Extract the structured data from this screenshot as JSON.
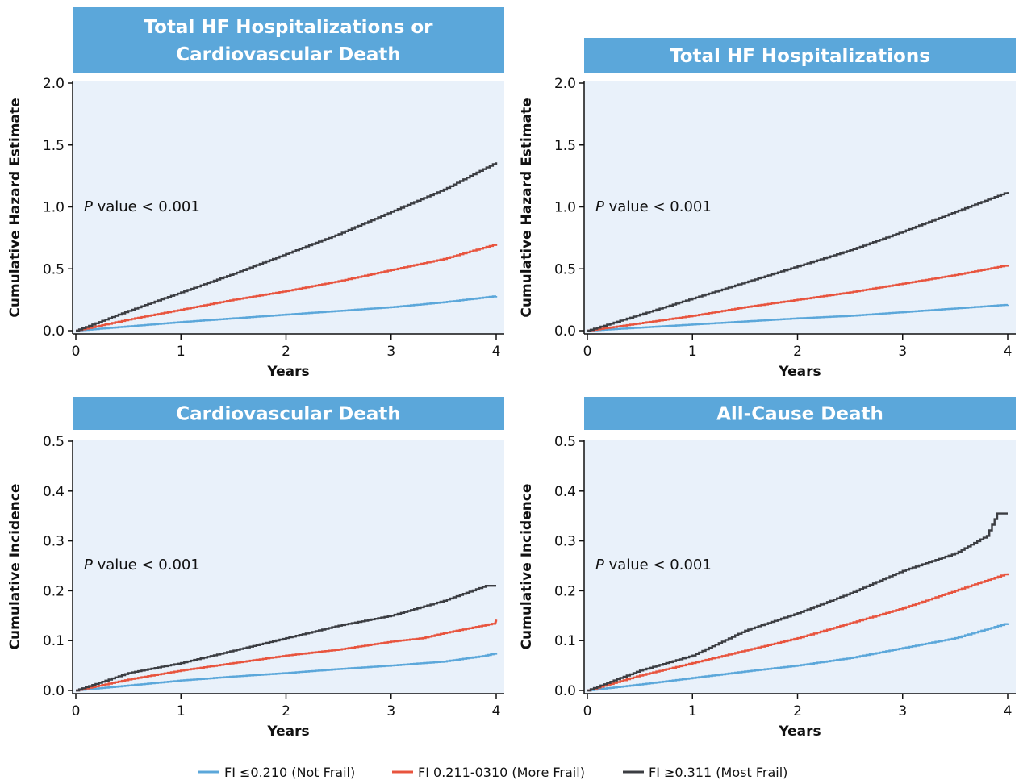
{
  "colors": {
    "header_bg": "#5ba7da",
    "plot_bg": "#e9f1fa",
    "not_frail": "#5ba7da",
    "more_frail": "#e8543e",
    "most_frail": "#3b3d42"
  },
  "legend": [
    {
      "label": "FI ≤0.210 (Not Frail)",
      "color": "#5ba7da"
    },
    {
      "label": "FI 0.211-0310 (More Frail)",
      "color": "#e8543e"
    },
    {
      "label": "FI ≥0.311 (Most Frail)",
      "color": "#3b3d42"
    }
  ],
  "chart_data": [
    {
      "type": "line",
      "title_lines": [
        "Total HF Hospitalizations or",
        "Cardiovascular Death"
      ],
      "xlabel": "Years",
      "ylabel": "Cumulative Hazard Estimate",
      "annotation": {
        "italic": "P",
        "text": " value < 0.001"
      },
      "xlim": [
        0,
        4
      ],
      "ylim": [
        0,
        2.0
      ],
      "xticks": [
        0,
        1,
        2,
        3,
        4
      ],
      "yticks": [
        0.0,
        0.5,
        1.0,
        1.5,
        2.0
      ],
      "ytick_labels": [
        "0.0",
        "0.5",
        "1.0",
        "1.5",
        "2.0"
      ],
      "series": [
        {
          "name": "FI ≤0.210 (Not Frail)",
          "color_key": "not_frail",
          "x": [
            0,
            0.5,
            1,
            1.5,
            2,
            2.5,
            3,
            3.5,
            4
          ],
          "y": [
            0,
            0.035,
            0.07,
            0.1,
            0.13,
            0.16,
            0.19,
            0.23,
            0.28
          ]
        },
        {
          "name": "FI 0.211-0310 (More Frail)",
          "color_key": "more_frail",
          "x": [
            0,
            0.5,
            1,
            1.5,
            2,
            2.5,
            3,
            3.5,
            4
          ],
          "y": [
            0,
            0.09,
            0.17,
            0.25,
            0.32,
            0.4,
            0.49,
            0.58,
            0.7
          ]
        },
        {
          "name": "FI ≥0.311 (Most Frail)",
          "color_key": "most_frail",
          "x": [
            0,
            0.5,
            1,
            1.5,
            2,
            2.5,
            3,
            3.5,
            4
          ],
          "y": [
            0,
            0.16,
            0.31,
            0.46,
            0.62,
            0.78,
            0.96,
            1.14,
            1.36
          ]
        }
      ]
    },
    {
      "type": "line",
      "title_lines": [
        "Total HF Hospitalizations"
      ],
      "xlabel": "Years",
      "ylabel": "Cumulative Hazard Estimate",
      "annotation": {
        "italic": "P",
        "text": " value < 0.001"
      },
      "xlim": [
        0,
        4
      ],
      "ylim": [
        0,
        2.0
      ],
      "xticks": [
        0,
        1,
        2,
        3,
        4
      ],
      "yticks": [
        0.0,
        0.5,
        1.0,
        1.5,
        2.0
      ],
      "ytick_labels": [
        "0.0",
        "0.5",
        "1.0",
        "1.5",
        "2.0"
      ],
      "series": [
        {
          "name": "FI ≤0.210 (Not Frail)",
          "color_key": "not_frail",
          "x": [
            0,
            0.5,
            1,
            1.5,
            2,
            2.5,
            3,
            3.5,
            4
          ],
          "y": [
            0,
            0.025,
            0.05,
            0.075,
            0.1,
            0.12,
            0.15,
            0.18,
            0.21
          ]
        },
        {
          "name": "FI 0.211-0310 (More Frail)",
          "color_key": "more_frail",
          "x": [
            0,
            0.5,
            1,
            1.5,
            2,
            2.5,
            3,
            3.5,
            4
          ],
          "y": [
            0,
            0.06,
            0.12,
            0.19,
            0.25,
            0.31,
            0.38,
            0.45,
            0.53
          ]
        },
        {
          "name": "FI ≥0.311 (Most Frail)",
          "color_key": "most_frail",
          "x": [
            0,
            0.5,
            1,
            1.5,
            2,
            2.5,
            3,
            3.5,
            4
          ],
          "y": [
            0,
            0.13,
            0.26,
            0.39,
            0.52,
            0.65,
            0.8,
            0.96,
            1.12
          ]
        }
      ]
    },
    {
      "type": "line",
      "title_lines": [
        "Cardiovascular Death"
      ],
      "xlabel": "Years",
      "ylabel": "Cumulative Incidence",
      "annotation": {
        "italic": "P",
        "text": " value < 0.001"
      },
      "xlim": [
        0,
        4
      ],
      "ylim": [
        0,
        0.5
      ],
      "xticks": [
        0,
        1,
        2,
        3,
        4
      ],
      "yticks": [
        0.0,
        0.1,
        0.2,
        0.3,
        0.4,
        0.5
      ],
      "ytick_labels": [
        "0.0",
        "0.1",
        "0.2",
        "0.3",
        "0.4",
        "0.5"
      ],
      "series": [
        {
          "name": "FI ≤0.210 (Not Frail)",
          "color_key": "not_frail",
          "x": [
            0,
            0.5,
            1,
            1.5,
            2,
            2.5,
            3,
            3.5,
            3.9,
            4
          ],
          "y": [
            0,
            0.01,
            0.02,
            0.028,
            0.035,
            0.043,
            0.05,
            0.058,
            0.07,
            0.075
          ]
        },
        {
          "name": "FI 0.211-0310 (More Frail)",
          "color_key": "more_frail",
          "x": [
            0,
            0.5,
            1,
            1.5,
            2,
            2.5,
            3,
            3.3,
            3.5,
            3.99,
            4
          ],
          "y": [
            0,
            0.022,
            0.04,
            0.055,
            0.07,
            0.082,
            0.098,
            0.105,
            0.115,
            0.135,
            0.142
          ]
        },
        {
          "name": "FI ≥0.311 (Most Frail)",
          "color_key": "most_frail",
          "x": [
            0,
            0.5,
            1,
            1.5,
            2,
            2.5,
            3,
            3.5,
            3.9,
            4
          ],
          "y": [
            0,
            0.035,
            0.055,
            0.08,
            0.105,
            0.13,
            0.15,
            0.18,
            0.21,
            0.21
          ]
        }
      ]
    },
    {
      "type": "line",
      "title_lines": [
        "All-Cause Death"
      ],
      "xlabel": "Years",
      "ylabel": "Cumulative Incidence",
      "annotation": {
        "italic": "P",
        "text": " value < 0.001"
      },
      "xlim": [
        0,
        4
      ],
      "ylim": [
        0,
        0.5
      ],
      "xticks": [
        0,
        1,
        2,
        3,
        4
      ],
      "yticks": [
        0.0,
        0.1,
        0.2,
        0.3,
        0.4,
        0.5
      ],
      "ytick_labels": [
        "0.0",
        "0.1",
        "0.2",
        "0.3",
        "0.4",
        "0.5"
      ],
      "series": [
        {
          "name": "FI ≤0.210 (Not Frail)",
          "color_key": "not_frail",
          "x": [
            0,
            0.5,
            1,
            1.5,
            2,
            2.5,
            3,
            3.5,
            4
          ],
          "y": [
            0,
            0.012,
            0.025,
            0.038,
            0.05,
            0.065,
            0.085,
            0.105,
            0.135
          ]
        },
        {
          "name": "FI 0.211-0310 (More Frail)",
          "color_key": "more_frail",
          "x": [
            0,
            0.5,
            1,
            1.5,
            2,
            2.5,
            3,
            3.5,
            4
          ],
          "y": [
            0,
            0.03,
            0.055,
            0.08,
            0.105,
            0.135,
            0.165,
            0.2,
            0.235
          ]
        },
        {
          "name": "FI ≥0.311 (Most Frail)",
          "color_key": "most_frail",
          "x": [
            0,
            0.5,
            1,
            1.5,
            2,
            2.5,
            3,
            3.5,
            3.8,
            3.9,
            4
          ],
          "y": [
            0,
            0.04,
            0.07,
            0.12,
            0.155,
            0.195,
            0.24,
            0.275,
            0.31,
            0.355,
            0.355
          ]
        }
      ]
    }
  ]
}
